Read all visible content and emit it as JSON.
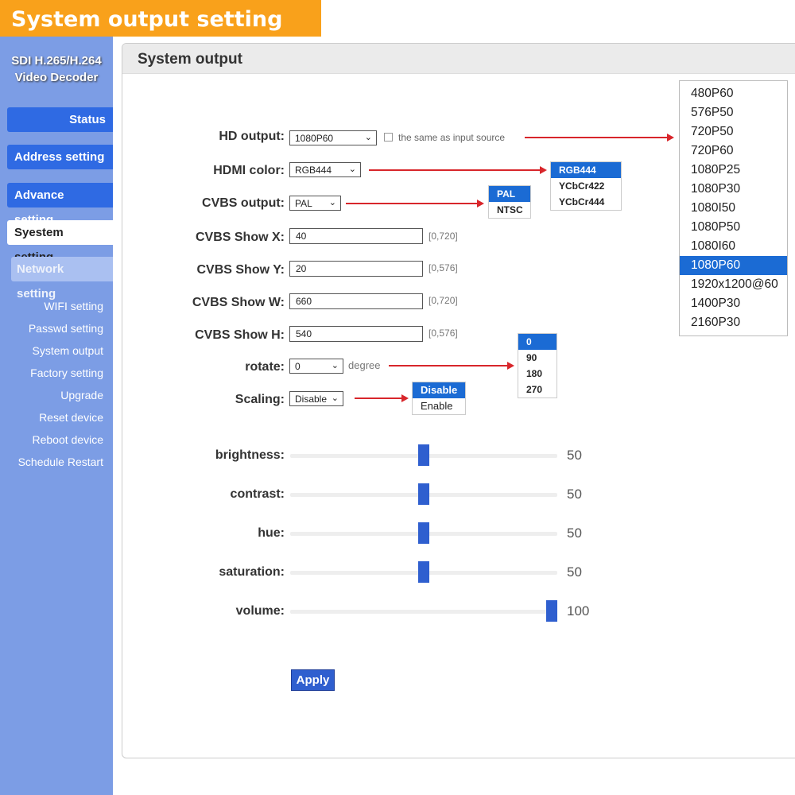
{
  "banner": "System output setting",
  "sidebar": {
    "brand_line1": "SDI H.265/H.264",
    "brand_line2": "Video Decoder",
    "buttons": [
      "Status",
      "Address setting",
      "Advance setting",
      "Syestem setting",
      "Network setting"
    ],
    "links": [
      "WIFI setting",
      "Passwd setting",
      "System output",
      "Factory setting",
      "Upgrade",
      "Reset device",
      "Reboot device",
      "Schedule Restart"
    ]
  },
  "panel": {
    "title": "System output"
  },
  "form": {
    "hd_output": {
      "label": "HD output:",
      "value": "1080P60",
      "checkbox_label": "the same as input source",
      "checked": false
    },
    "hdmi_color": {
      "label": "HDMI color:",
      "value": "RGB444"
    },
    "cvbs_output": {
      "label": "CVBS output:",
      "value": "PAL"
    },
    "cvbs_x": {
      "label": "CVBS Show X:",
      "value": "40",
      "range": "[0,720]"
    },
    "cvbs_y": {
      "label": "CVBS Show Y:",
      "value": "20",
      "range": "[0,576]"
    },
    "cvbs_w": {
      "label": "CVBS Show W:",
      "value": "660",
      "range": "[0,720]"
    },
    "cvbs_h": {
      "label": "CVBS Show H:",
      "value": "540",
      "range": "[0,576]"
    },
    "rotate": {
      "label": "rotate:",
      "value": "0",
      "unit": "degree"
    },
    "scaling": {
      "label": "Scaling:",
      "value": "Disable"
    }
  },
  "dropdowns": {
    "hd_output": [
      "480P60",
      "576P50",
      "720P50",
      "720P60",
      "1080P25",
      "1080P30",
      "1080I50",
      "1080P50",
      "1080I60",
      "1080P60",
      "1920x1200@60",
      "1400P30",
      "2160P30"
    ],
    "hdmi_color": [
      "RGB444",
      "YCbCr422",
      "YCbCr444"
    ],
    "cvbs_output": [
      "PAL",
      "NTSC"
    ],
    "rotate": [
      "0",
      "90",
      "180",
      "270"
    ],
    "scaling": [
      "Disable",
      "Enable"
    ]
  },
  "sliders": [
    {
      "label": "brightness:",
      "value": 50
    },
    {
      "label": "contrast:",
      "value": 50
    },
    {
      "label": "hue:",
      "value": 50
    },
    {
      "label": "saturation:",
      "value": 50
    },
    {
      "label": "volume:",
      "value": 100
    }
  ],
  "slider_max": 100,
  "apply_label": "Apply",
  "colors": {
    "banner": "#f9a11b",
    "sidebar": "#7c9de5",
    "nav_button": "#2f6ae3",
    "highlight": "#1b6bd4",
    "arrow": "#d8262b"
  }
}
